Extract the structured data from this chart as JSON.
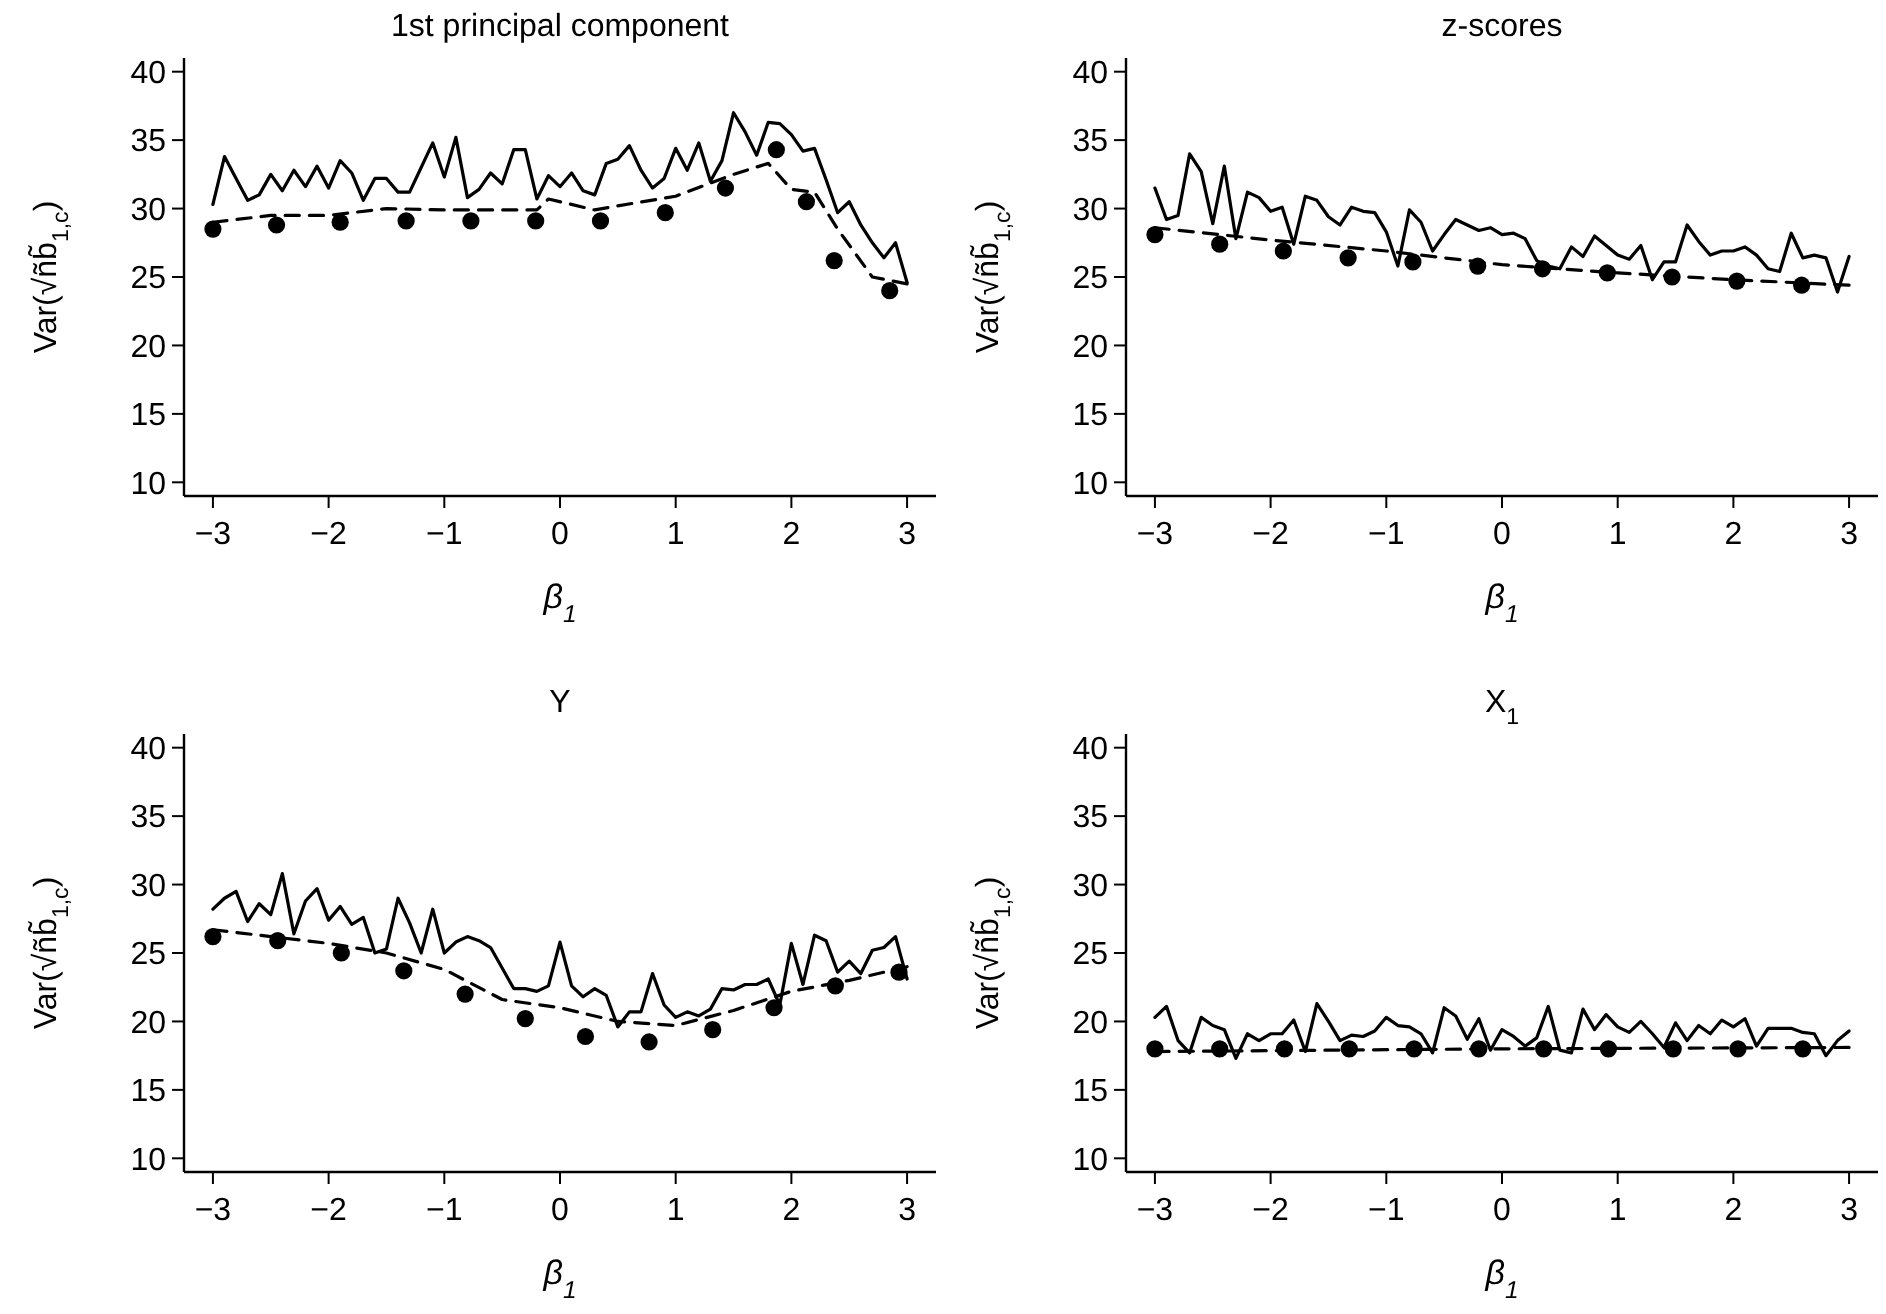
{
  "chart_data": [
    {
      "type": "line",
      "title": "1st principal component",
      "xlabel": "β$_{1}$",
      "ylabel": "Var(√ñb̃$_{1,c}$)",
      "xlim": [
        -3.25,
        3.25
      ],
      "ylim": [
        9,
        41
      ],
      "xticks": [
        {
          "value": -3,
          "label": "−3"
        },
        {
          "value": -2,
          "label": "−2"
        },
        {
          "value": -1,
          "label": "−1"
        },
        0,
        1,
        2,
        3
      ],
      "yticks": [
        10,
        15,
        20,
        25,
        30,
        35,
        40
      ],
      "series": [
        {
          "type": "line",
          "color": "#000000",
          "line_style": "solid",
          "x": [
            -3,
            -2.9,
            -2.8,
            -2.7,
            -2.6,
            -2.5,
            -2.4,
            -2.3,
            -2.2,
            -2.1,
            -2,
            -1.9,
            -1.8,
            -1.7,
            -1.6,
            -1.5,
            -1.4,
            -1.3,
            -1.2,
            -1.1,
            -1,
            -0.9,
            -0.8,
            -0.7,
            -0.6,
            -0.5,
            -0.4,
            -0.3,
            -0.2,
            -0.1,
            0,
            0.1,
            0.2,
            0.3,
            0.4,
            0.5,
            0.6,
            0.7,
            0.8,
            0.9,
            1,
            1.1,
            1.2,
            1.3,
            1.4,
            1.5,
            1.6,
            1.7,
            1.8,
            1.9,
            2,
            2.1,
            2.2,
            2.3,
            2.4,
            2.5,
            2.6,
            2.7,
            2.8,
            2.9,
            3
          ],
          "values": [
            30.3,
            33.8,
            32.2,
            30.6,
            31,
            32.5,
            31.3,
            32.8,
            31.6,
            33.1,
            31.5,
            33.5,
            32.6,
            30.6,
            32.2,
            32.2,
            31.2,
            31.2,
            33,
            34.8,
            32.3,
            35.2,
            30.8,
            31.4,
            32.6,
            31.8,
            34.3,
            34.3,
            30.7,
            32.4,
            31.6,
            32.6,
            31.3,
            31,
            33.3,
            33.6,
            34.6,
            32.8,
            31.5,
            32.2,
            34.4,
            32.8,
            34.8,
            32,
            33.5,
            37,
            35.6,
            33.9,
            36.3,
            36.2,
            35.4,
            34.2,
            34.4,
            32.1,
            29.7,
            30.5,
            28.8,
            27.5,
            26.4,
            27.5,
            24.6
          ]
        },
        {
          "type": "line",
          "color": "#000000",
          "line_style": "dashed",
          "x": [
            -3,
            -2.5,
            -2,
            -1.5,
            -1,
            -0.5,
            -0.2,
            -0.1,
            0.3,
            0.5,
            1,
            1.5,
            1.8,
            2,
            2.2,
            2.4,
            2.7,
            3
          ],
          "values": [
            29,
            29.5,
            29.5,
            30,
            29.9,
            29.9,
            29.9,
            30.7,
            29.9,
            30.2,
            30.9,
            32.5,
            33.3,
            31.4,
            31.2,
            28.5,
            25,
            24.5
          ]
        },
        {
          "type": "scatter",
          "color": "#000000",
          "marker": "circle",
          "x": [
            -3,
            -2.45,
            -1.9,
            -1.33,
            -0.77,
            -0.21,
            0.35,
            0.91,
            1.43,
            1.87,
            2.13,
            2.37,
            2.85
          ],
          "values": [
            28.5,
            28.8,
            29,
            29.1,
            29.1,
            29.1,
            29.1,
            29.7,
            31.5,
            34.3,
            30.5,
            26.2,
            24
          ]
        }
      ]
    },
    {
      "type": "line",
      "title": "z-scores",
      "xlabel": "β$_{1}$",
      "ylabel": "Var(√ñb̃$_{1,c}$)",
      "xlim": [
        -3.25,
        3.25
      ],
      "ylim": [
        9,
        41
      ],
      "xticks": [
        {
          "value": -3,
          "label": "−3"
        },
        {
          "value": -2,
          "label": "−2"
        },
        {
          "value": -1,
          "label": "−1"
        },
        0,
        1,
        2,
        3
      ],
      "yticks": [
        10,
        15,
        20,
        25,
        30,
        35,
        40
      ],
      "series": [
        {
          "type": "line",
          "color": "#000000",
          "line_style": "solid",
          "x": [
            -3,
            -2.9,
            -2.8,
            -2.7,
            -2.6,
            -2.5,
            -2.4,
            -2.3,
            -2.2,
            -2.1,
            -2,
            -1.9,
            -1.8,
            -1.7,
            -1.6,
            -1.5,
            -1.4,
            -1.3,
            -1.2,
            -1.1,
            -1,
            -0.9,
            -0.8,
            -0.7,
            -0.6,
            -0.5,
            -0.4,
            -0.3,
            -0.2,
            -0.1,
            0,
            0.1,
            0.2,
            0.3,
            0.4,
            0.5,
            0.6,
            0.7,
            0.8,
            0.9,
            1,
            1.1,
            1.2,
            1.3,
            1.4,
            1.5,
            1.6,
            1.7,
            1.8,
            1.9,
            2,
            2.1,
            2.2,
            2.3,
            2.4,
            2.5,
            2.6,
            2.7,
            2.8,
            2.9,
            3
          ],
          "values": [
            31.5,
            29.2,
            29.5,
            34,
            32.7,
            28.9,
            33.1,
            27.8,
            31.2,
            30.8,
            29.8,
            30.1,
            27.4,
            30.9,
            30.6,
            29.4,
            28.8,
            30.1,
            29.8,
            29.7,
            28.3,
            25.8,
            29.9,
            29,
            26.9,
            28.1,
            29.2,
            28.8,
            28.4,
            28.6,
            28.1,
            28.2,
            27.8,
            26.2,
            25.8,
            25.6,
            27.2,
            26.5,
            28,
            27.3,
            26.6,
            26.3,
            27.3,
            24.8,
            26.1,
            26.1,
            28.8,
            27.6,
            26.6,
            26.9,
            26.9,
            27.2,
            26.6,
            25.6,
            25.4,
            28.2,
            26.4,
            26.6,
            26.4,
            23.9,
            26.5
          ]
        },
        {
          "type": "line",
          "color": "#000000",
          "line_style": "dashed",
          "x": [
            -3,
            -2,
            -1,
            0,
            1,
            2,
            3
          ],
          "values": [
            28.6,
            27.7,
            26.9,
            25.9,
            25.3,
            24.8,
            24.4
          ]
        },
        {
          "type": "scatter",
          "color": "#000000",
          "marker": "circle",
          "x": [
            -3,
            -2.44,
            -1.89,
            -1.33,
            -0.77,
            -0.21,
            0.35,
            0.91,
            1.47,
            2.03,
            2.59
          ],
          "values": [
            28.1,
            27.4,
            26.9,
            26.4,
            26.1,
            25.8,
            25.6,
            25.3,
            25,
            24.7,
            24.4
          ]
        }
      ]
    },
    {
      "type": "line",
      "title": "Y",
      "xlabel": "β$_{1}$",
      "ylabel": "Var(√ñb̃$_{1,c}$)",
      "xlim": [
        -3.25,
        3.25
      ],
      "ylim": [
        9,
        41
      ],
      "xticks": [
        {
          "value": -3,
          "label": "−3"
        },
        {
          "value": -2,
          "label": "−2"
        },
        {
          "value": -1,
          "label": "−1"
        },
        0,
        1,
        2,
        3
      ],
      "yticks": [
        10,
        15,
        20,
        25,
        30,
        35,
        40
      ],
      "series": [
        {
          "type": "line",
          "color": "#000000",
          "line_style": "solid",
          "x": [
            -3,
            -2.9,
            -2.8,
            -2.7,
            -2.6,
            -2.5,
            -2.4,
            -2.3,
            -2.2,
            -2.1,
            -2,
            -1.9,
            -1.8,
            -1.7,
            -1.6,
            -1.5,
            -1.4,
            -1.3,
            -1.2,
            -1.1,
            -1,
            -0.9,
            -0.8,
            -0.7,
            -0.6,
            -0.5,
            -0.4,
            -0.3,
            -0.2,
            -0.1,
            0,
            0.1,
            0.2,
            0.3,
            0.4,
            0.5,
            0.6,
            0.7,
            0.8,
            0.9,
            1,
            1.1,
            1.2,
            1.3,
            1.4,
            1.5,
            1.6,
            1.7,
            1.8,
            1.9,
            2,
            2.1,
            2.2,
            2.3,
            2.4,
            2.5,
            2.6,
            2.7,
            2.8,
            2.9,
            3
          ],
          "values": [
            28.2,
            29,
            29.5,
            27.3,
            28.6,
            27.8,
            30.8,
            26.4,
            28.8,
            29.7,
            27.4,
            28.4,
            27.1,
            27.6,
            25,
            25.3,
            29,
            27.2,
            25,
            28.2,
            25,
            25.8,
            26.2,
            25.9,
            25.4,
            23.9,
            22.4,
            22.4,
            22.2,
            22.6,
            25.8,
            22.6,
            21.8,
            22.4,
            21.9,
            19.6,
            20.7,
            20.7,
            23.5,
            21.2,
            20.3,
            20.7,
            20.4,
            20.9,
            22.4,
            22.3,
            22.7,
            22.7,
            23.1,
            21.2,
            25.7,
            22.7,
            26.3,
            25.9,
            23.6,
            24.4,
            23.5,
            25.2,
            25.4,
            26.2,
            23.1
          ]
        },
        {
          "type": "line",
          "color": "#000000",
          "line_style": "dashed",
          "x": [
            -3,
            -2,
            -1.5,
            -1,
            -0.5,
            0,
            0.5,
            1,
            1.5,
            2,
            2.5,
            3
          ],
          "values": [
            26.7,
            25.7,
            25,
            23.8,
            21.6,
            21,
            20,
            19.7,
            20.8,
            22.2,
            23,
            24
          ]
        },
        {
          "type": "scatter",
          "color": "#000000",
          "marker": "circle",
          "x": [
            -3,
            -2.44,
            -1.89,
            -1.35,
            -0.82,
            -0.3,
            0.22,
            0.77,
            1.32,
            1.85,
            2.38,
            2.93
          ],
          "values": [
            26.2,
            25.9,
            25,
            23.7,
            22,
            20.2,
            18.9,
            18.5,
            19.4,
            21,
            22.6,
            23.6
          ]
        }
      ]
    },
    {
      "type": "line",
      "title": "X$_{1}$",
      "xlabel": "β$_{1}$",
      "ylabel": "Var(√ñb̃$_{1,c}$)",
      "xlim": [
        -3.25,
        3.25
      ],
      "ylim": [
        9,
        41
      ],
      "xticks": [
        {
          "value": -3,
          "label": "−3"
        },
        {
          "value": -2,
          "label": "−2"
        },
        {
          "value": -1,
          "label": "−1"
        },
        0,
        1,
        2,
        3
      ],
      "yticks": [
        10,
        15,
        20,
        25,
        30,
        35,
        40
      ],
      "series": [
        {
          "type": "line",
          "color": "#000000",
          "line_style": "solid",
          "x": [
            -3,
            -2.9,
            -2.8,
            -2.7,
            -2.6,
            -2.5,
            -2.4,
            -2.3,
            -2.2,
            -2.1,
            -2,
            -1.9,
            -1.8,
            -1.7,
            -1.6,
            -1.5,
            -1.4,
            -1.3,
            -1.2,
            -1.1,
            -1,
            -0.9,
            -0.8,
            -0.7,
            -0.6,
            -0.5,
            -0.4,
            -0.3,
            -0.2,
            -0.1,
            0,
            0.1,
            0.2,
            0.3,
            0.4,
            0.5,
            0.6,
            0.7,
            0.8,
            0.9,
            1,
            1.1,
            1.2,
            1.3,
            1.4,
            1.5,
            1.6,
            1.7,
            1.8,
            1.9,
            2,
            2.1,
            2.2,
            2.3,
            2.4,
            2.5,
            2.6,
            2.7,
            2.8,
            2.9,
            3
          ],
          "values": [
            20.3,
            21.1,
            18.6,
            17.7,
            20.3,
            19.7,
            19.4,
            17.3,
            19.1,
            18.6,
            19.1,
            19.1,
            20.1,
            17.8,
            21.3,
            20,
            18.6,
            19,
            18.9,
            19.3,
            20.3,
            19.7,
            19.6,
            19.1,
            17.7,
            21,
            20.4,
            18.7,
            20.2,
            17.9,
            19.4,
            18.9,
            18.2,
            18.8,
            21.1,
            17.9,
            17.7,
            20.9,
            19.4,
            20.5,
            19.6,
            19.2,
            20,
            19.1,
            18.1,
            19.9,
            18.6,
            19.7,
            19.1,
            20.1,
            19.6,
            20.2,
            18.2,
            19.5,
            19.5,
            19.5,
            19.2,
            19.1,
            17.5,
            18.6,
            19.3
          ]
        },
        {
          "type": "line",
          "color": "#000000",
          "line_style": "dashed",
          "x": [
            -3,
            0,
            3
          ],
          "values": [
            17.8,
            18,
            18.1
          ]
        },
        {
          "type": "scatter",
          "color": "#000000",
          "marker": "circle",
          "x": [
            -3,
            -2.44,
            -1.88,
            -1.32,
            -0.76,
            -0.2,
            0.36,
            0.92,
            1.48,
            2.04,
            2.6
          ],
          "values": [
            18,
            18,
            18,
            18,
            18,
            18,
            18,
            18,
            18,
            18,
            18
          ]
        }
      ]
    }
  ]
}
